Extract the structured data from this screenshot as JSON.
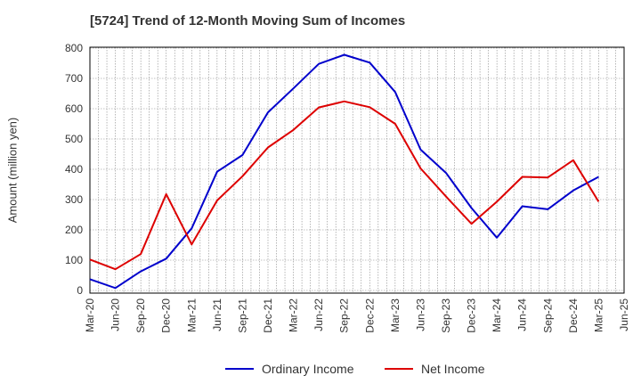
{
  "chart_data": {
    "type": "line",
    "title": "[5724]  Trend of 12-Month Moving Sum of Incomes",
    "ylabel": "Amount (million yen)",
    "xlabel": "",
    "ylim": [
      0,
      800
    ],
    "yticks": [
      0,
      100,
      200,
      300,
      400,
      500,
      600,
      700,
      800
    ],
    "grid": true,
    "legend_position": "bottom",
    "categories": [
      "Mar-20",
      "Jun-20",
      "Sep-20",
      "Dec-20",
      "Mar-21",
      "Jun-21",
      "Sep-21",
      "Dec-21",
      "Mar-22",
      "Jun-22",
      "Sep-22",
      "Dec-22",
      "Mar-23",
      "Jun-23",
      "Sep-23",
      "Dec-23",
      "Mar-24",
      "Jun-24",
      "Sep-24",
      "Dec-24",
      "Mar-25",
      "Jun-25"
    ],
    "series": [
      {
        "name": "Ordinary Income",
        "color": "#0000cc",
        "values": [
          37,
          8,
          63,
          105,
          205,
          392,
          447,
          588,
          667,
          748,
          778,
          752,
          655,
          465,
          388,
          272,
          174,
          278,
          268,
          330,
          375,
          null
        ]
      },
      {
        "name": "Net Income",
        "color": "#dd0000",
        "values": [
          102,
          70,
          120,
          318,
          152,
          297,
          377,
          472,
          530,
          604,
          624,
          605,
          550,
          403,
          310,
          220,
          293,
          375,
          373,
          430,
          293,
          null
        ]
      }
    ]
  }
}
